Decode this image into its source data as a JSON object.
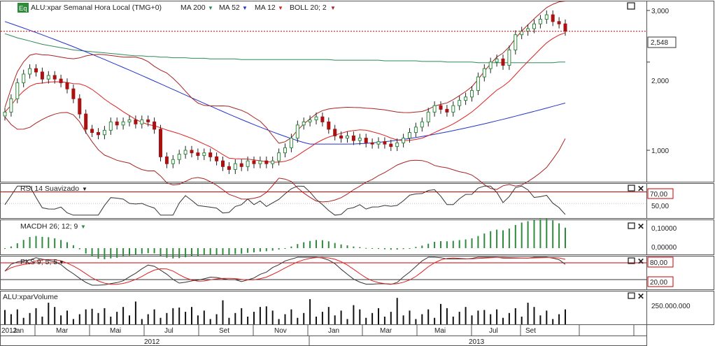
{
  "header": {
    "badge": "Eq",
    "symbol_label": "ALU:xpar Semanal Hora Local (TMG+0)",
    "indicators": [
      {
        "label": "MA 200",
        "color": "#2e8b57"
      },
      {
        "label": "MA 52",
        "color": "#2233cc"
      },
      {
        "label": "MA 12",
        "color": "#dd2222"
      },
      {
        "label": "BOLL 20; 2",
        "color": "#aa2222"
      }
    ]
  },
  "panels": {
    "price": {
      "last_price_label": "2,548",
      "last_price": 2.548,
      "y_ticks": [
        {
          "value": 3.0,
          "label": "3,000"
        },
        {
          "value": 2.0,
          "label": "2,000"
        },
        {
          "value": 1.0,
          "label": "1,000"
        }
      ]
    },
    "rsi": {
      "title": "RSI 14 Suavizado",
      "level_label": "70,00",
      "level": 70,
      "ticks": [
        {
          "value": 50,
          "label": "50,00"
        }
      ]
    },
    "macd": {
      "title": "MACDH 26; 12; 9",
      "ticks": [
        {
          "value": 0.1,
          "label": "0,10000"
        },
        {
          "value": 0.0,
          "label": "0,00000"
        }
      ]
    },
    "pks": {
      "title": "PKS 9; 5; 5",
      "upper_label": "80,00",
      "lower_label": "20,00",
      "upper": 80,
      "lower": 20
    },
    "volume": {
      "title": "ALU:xparVolume",
      "tick_label": "250.000.000",
      "tick_value": 250000000
    }
  },
  "x_axis": {
    "month_labels": [
      "2012",
      "Jan",
      "Mar",
      "Mai",
      "Jul",
      "Set",
      "Nov",
      "Jan",
      "Mar",
      "Mai",
      "Jul",
      "Set"
    ],
    "years": [
      "2012",
      "2013"
    ]
  },
  "colors": {
    "up": "#2e8b3c",
    "down": "#aa1111",
    "ma200": "#2e8b57",
    "ma52": "#2233cc",
    "ma12": "#dd2222",
    "boll": "#aa2222",
    "macd_bar": "#2e8b3c",
    "last_price_line": "#cc0000",
    "rsi_line": "#333333",
    "pks_k": "#333333",
    "pks_d": "#dd2222",
    "volume_bar": "#111111"
  },
  "chart_data": {
    "type": "line",
    "title": "ALU:xpar Semanal Hora Local (TMG+0)",
    "x_label": "",
    "y_label": "",
    "weeks": 91,
    "close": [
      1.35,
      1.5,
      1.7,
      1.82,
      1.9,
      1.85,
      1.75,
      1.8,
      1.75,
      1.7,
      1.62,
      1.5,
      1.33,
      1.18,
      1.15,
      1.13,
      1.17,
      1.25,
      1.22,
      1.25,
      1.27,
      1.23,
      1.27,
      1.25,
      1.18,
      0.95,
      0.9,
      0.93,
      0.97,
      1.0,
      0.98,
      0.96,
      0.98,
      0.95,
      0.92,
      0.88,
      0.86,
      0.9,
      0.88,
      0.92,
      0.9,
      0.92,
      0.9,
      0.92,
      0.98,
      1.02,
      1.1,
      1.22,
      1.25,
      1.27,
      1.3,
      1.25,
      1.18,
      1.12,
      1.1,
      1.12,
      1.08,
      1.1,
      1.06,
      1.05,
      1.07,
      1.05,
      1.03,
      1.06,
      1.1,
      1.15,
      1.2,
      1.25,
      1.35,
      1.42,
      1.38,
      1.35,
      1.42,
      1.48,
      1.52,
      1.6,
      1.78,
      1.9,
      2.0,
      2.05,
      1.95,
      2.2,
      2.48,
      2.55,
      2.6,
      2.7,
      2.8,
      2.9,
      2.75,
      2.7,
      2.55
    ],
    "ma200": [
      2.5,
      2.46,
      2.42,
      2.39,
      2.36,
      2.33,
      2.3,
      2.28,
      2.26,
      2.24,
      2.22,
      2.2,
      2.19,
      2.18,
      2.17,
      2.16,
      2.15,
      2.14,
      2.13,
      2.12,
      2.11,
      2.1,
      2.1,
      2.09,
      2.09,
      2.08,
      2.08,
      2.07,
      2.07,
      2.07,
      2.06,
      2.06,
      2.06,
      2.05,
      2.05,
      2.05,
      2.05,
      2.05,
      2.04,
      2.04,
      2.04,
      2.04,
      2.04,
      2.04,
      2.04,
      2.04,
      2.04,
      2.04,
      2.04,
      2.04,
      2.04,
      2.04,
      2.04,
      2.03,
      2.03,
      2.03,
      2.03,
      2.03,
      2.03,
      2.03,
      2.03,
      2.02,
      2.02,
      2.02,
      2.02,
      2.02,
      2.02,
      2.01,
      2.01,
      2.01,
      2.01,
      2.0,
      2.0,
      2.0,
      2.0,
      2.0,
      1.99,
      1.99,
      1.99,
      1.99,
      1.99,
      1.99,
      1.99,
      1.99,
      1.99,
      1.99,
      1.99,
      1.99,
      1.99,
      2.0,
      2.0
    ]
  }
}
